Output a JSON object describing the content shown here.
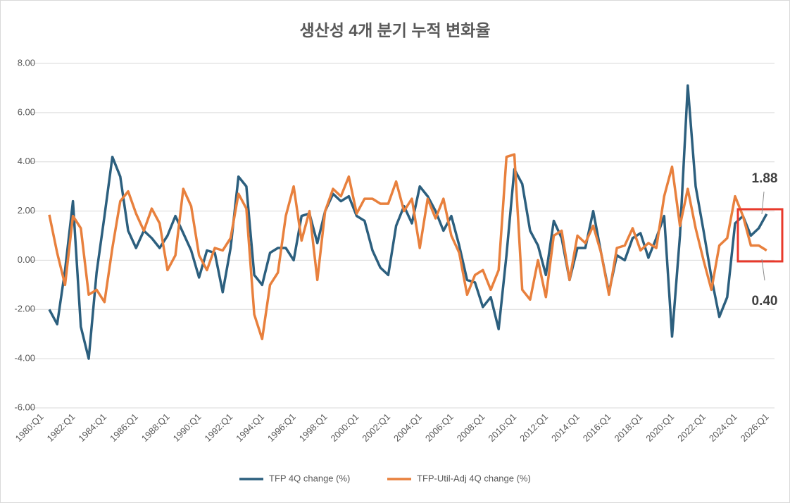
{
  "chart_data": {
    "type": "line",
    "title": "생산성 4개 분기 누적 변화율",
    "x": [
      1980,
      1980.5,
      1981,
      1981.5,
      1982,
      1982.5,
      1983,
      1983.5,
      1984,
      1984.5,
      1985,
      1985.5,
      1986,
      1986.5,
      1987,
      1987.5,
      1988,
      1988.5,
      1989,
      1989.5,
      1990,
      1990.5,
      1991,
      1991.5,
      1992,
      1992.5,
      1993,
      1993.5,
      1994,
      1994.5,
      1995,
      1995.5,
      1996,
      1996.5,
      1997,
      1997.5,
      1998,
      1998.5,
      1999,
      1999.5,
      2000,
      2000.5,
      2001,
      2001.5,
      2002,
      2002.5,
      2003,
      2003.5,
      2004,
      2004.5,
      2005,
      2005.5,
      2006,
      2006.5,
      2007,
      2007.5,
      2008,
      2008.5,
      2009,
      2009.5,
      2010,
      2010.5,
      2011,
      2011.5,
      2012,
      2012.5,
      2013,
      2013.5,
      2014,
      2014.5,
      2015,
      2015.5,
      2016,
      2016.5,
      2017,
      2017.5,
      2018,
      2018.5,
      2019,
      2019.5,
      2020,
      2020.5,
      2021,
      2021.5,
      2022,
      2022.5,
      2023,
      2023.5,
      2024,
      2024.5,
      2025,
      2025.5
    ],
    "series": [
      {
        "name": "TFP 4Q change (%)",
        "color": "#2c5f7e",
        "values": [
          -2.0,
          -2.6,
          -0.4,
          2.4,
          -2.7,
          -4.0,
          -0.5,
          1.8,
          4.2,
          3.4,
          1.2,
          0.5,
          1.2,
          0.9,
          0.5,
          1.0,
          1.8,
          1.1,
          0.4,
          -0.7,
          0.4,
          0.3,
          -1.3,
          0.5,
          3.4,
          3.0,
          -0.6,
          -1.0,
          0.3,
          0.5,
          0.5,
          0.0,
          1.8,
          1.9,
          0.7,
          2.0,
          2.7,
          2.4,
          2.6,
          1.8,
          1.6,
          0.4,
          -0.3,
          -0.6,
          1.4,
          2.2,
          1.5,
          3.0,
          2.6,
          2.0,
          1.2,
          1.8,
          0.6,
          -0.8,
          -0.9,
          -1.9,
          -1.5,
          -2.8,
          0.2,
          3.7,
          3.1,
          1.2,
          0.6,
          -0.6,
          1.6,
          0.9,
          -0.8,
          0.5,
          0.5,
          2.0,
          0.3,
          -1.3,
          0.2,
          0.0,
          0.9,
          1.1,
          0.1,
          0.9,
          1.8,
          -3.1,
          1.0,
          7.1,
          3.0,
          1.2,
          -0.7,
          -2.3,
          -1.5,
          1.5,
          1.8,
          1.0,
          1.3,
          1.88
        ]
      },
      {
        "name": "TFP-Util-Adj 4Q change (%)",
        "color": "#e8803d",
        "values": [
          1.85,
          0.3,
          -1.0,
          1.8,
          1.3,
          -1.4,
          -1.2,
          -1.7,
          0.5,
          2.4,
          2.8,
          1.9,
          1.2,
          2.1,
          1.5,
          -0.4,
          0.2,
          2.9,
          2.2,
          0.2,
          -0.4,
          0.5,
          0.4,
          0.9,
          2.7,
          2.1,
          -2.2,
          -3.2,
          -1.0,
          -0.5,
          1.8,
          3.0,
          0.8,
          2.0,
          -0.8,
          2.0,
          2.9,
          2.6,
          3.4,
          1.9,
          2.5,
          2.5,
          2.3,
          2.3,
          3.2,
          2.0,
          2.5,
          0.5,
          2.5,
          1.7,
          2.5,
          1.0,
          0.3,
          -1.4,
          -0.6,
          -0.4,
          -1.2,
          -0.4,
          4.2,
          4.3,
          -1.2,
          -1.6,
          0.0,
          -1.5,
          1.0,
          1.2,
          -0.8,
          1.0,
          0.7,
          1.4,
          0.3,
          -1.4,
          0.5,
          0.6,
          1.3,
          0.4,
          0.7,
          0.5,
          2.6,
          3.8,
          1.4,
          2.9,
          1.3,
          0.0,
          -1.2,
          0.6,
          0.9,
          2.6,
          1.8,
          0.6,
          0.6,
          0.4
        ]
      }
    ],
    "annotations": [
      "1.88",
      "0.40"
    ],
    "xlim": [
      1980,
      2026
    ],
    "xticks": [
      {
        "value": 1980,
        "label": "1980:Q1"
      },
      {
        "value": 1982,
        "label": "1982:Q1"
      },
      {
        "value": 1984,
        "label": "1984:Q1"
      },
      {
        "value": 1986,
        "label": "1986:Q1"
      },
      {
        "value": 1988,
        "label": "1988:Q1"
      },
      {
        "value": 1990,
        "label": "1990:Q1"
      },
      {
        "value": 1992,
        "label": "1992:Q1"
      },
      {
        "value": 1994,
        "label": "1994:Q1"
      },
      {
        "value": 1996,
        "label": "1996:Q1"
      },
      {
        "value": 1998,
        "label": "1998:Q1"
      },
      {
        "value": 2000,
        "label": "2000:Q1"
      },
      {
        "value": 2002,
        "label": "2002:Q1"
      },
      {
        "value": 2004,
        "label": "2004:Q1"
      },
      {
        "value": 2006,
        "label": "2006:Q1"
      },
      {
        "value": 2008,
        "label": "2008:Q1"
      },
      {
        "value": 2010,
        "label": "2010:Q1"
      },
      {
        "value": 2012,
        "label": "2012:Q1"
      },
      {
        "value": 2014,
        "label": "2014:Q1"
      },
      {
        "value": 2016,
        "label": "2016:Q1"
      },
      {
        "value": 2018,
        "label": "2018:Q1"
      },
      {
        "value": 2020,
        "label": "2020:Q1"
      },
      {
        "value": 2022,
        "label": "2022:Q1"
      },
      {
        "value": 2024,
        "label": "2024:Q1"
      },
      {
        "value": 2026,
        "label": "2026:Q1"
      }
    ],
    "ylim": [
      -6,
      8
    ],
    "yticks": [
      {
        "value": -6,
        "label": "-6.00"
      },
      {
        "value": -4,
        "label": "-4.00"
      },
      {
        "value": -2,
        "label": "-2.00"
      },
      {
        "value": 0,
        "label": "0.00"
      },
      {
        "value": 2,
        "label": "2.00"
      },
      {
        "value": 4,
        "label": "4.00"
      },
      {
        "value": 6,
        "label": "6.00"
      },
      {
        "value": 8,
        "label": "8.00"
      }
    ],
    "grid": true,
    "legend": "bottom"
  }
}
